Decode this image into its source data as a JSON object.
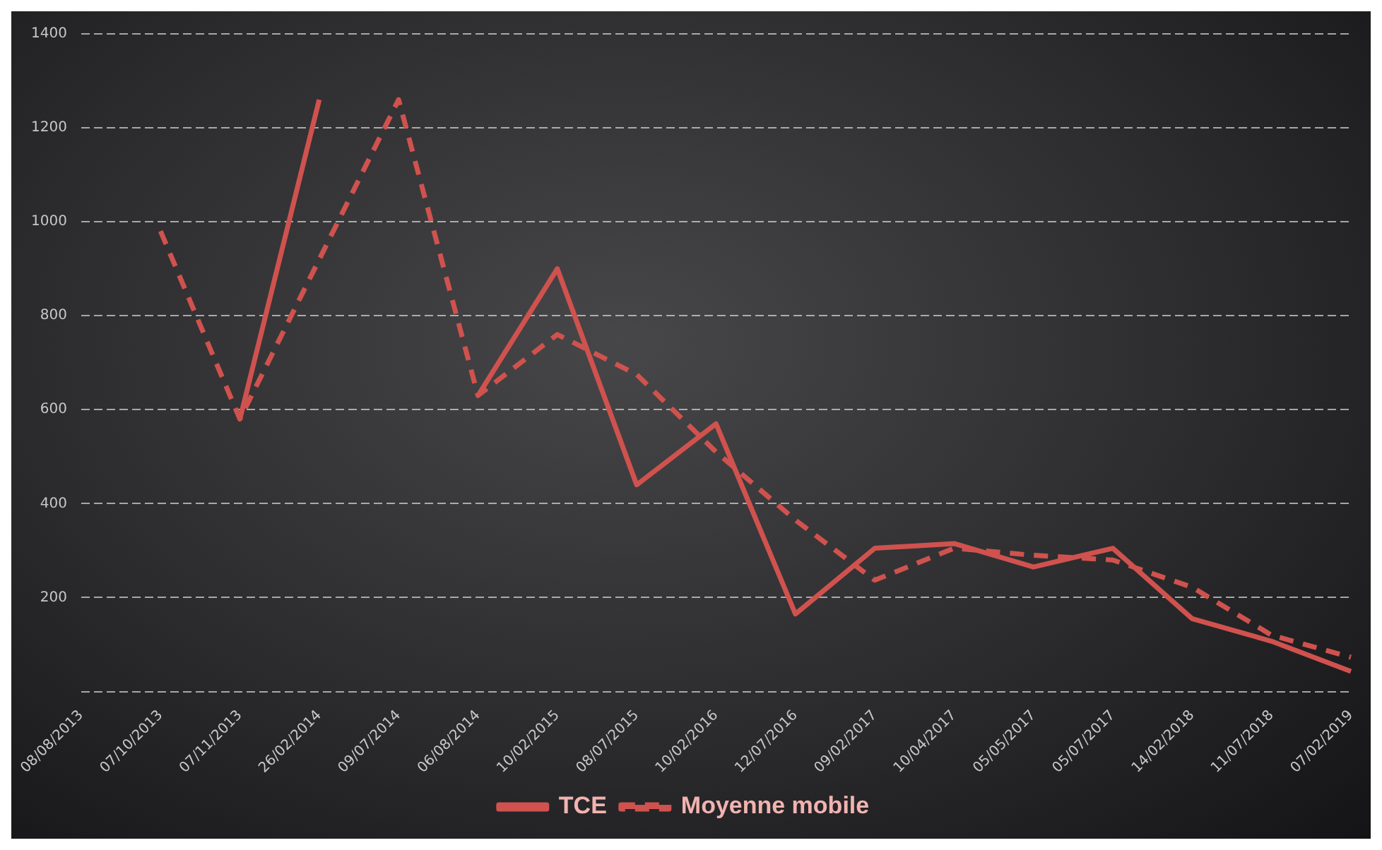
{
  "chart_data": {
    "type": "line",
    "categories": [
      "08/08/2013",
      "07/10/2013",
      "07/11/2013",
      "26/02/2014",
      "09/07/2014",
      "06/08/2014",
      "10/02/2015",
      "08/07/2015",
      "10/02/2016",
      "12/07/2016",
      "09/02/2017",
      "10/04/2017",
      "05/05/2017",
      "05/07/2017",
      "14/02/2018",
      "11/07/2018",
      "07/02/2019"
    ],
    "series": [
      {
        "name": "TCE",
        "color": "#d0524e",
        "line_style": "solid",
        "values": [
          null,
          null,
          580,
          1260,
          null,
          630,
          900,
          440,
          570,
          165,
          305,
          315,
          265,
          305,
          155,
          107,
          43
        ]
      },
      {
        "name": "Moyenne mobile",
        "color": "#d0524e",
        "line_style": "dashed",
        "values": [
          null,
          980,
          580,
          920,
          1260,
          630,
          760,
          675,
          510,
          365,
          237,
          305,
          290,
          280,
          222,
          120,
          73
        ]
      }
    ],
    "ylim": [
      0,
      1400
    ],
    "yticks": [
      {
        "value": 0,
        "label": null
      },
      200,
      400,
      600,
      800,
      1000,
      1200,
      1400
    ],
    "grid": "y",
    "legend": "bottom",
    "marker": "none"
  }
}
